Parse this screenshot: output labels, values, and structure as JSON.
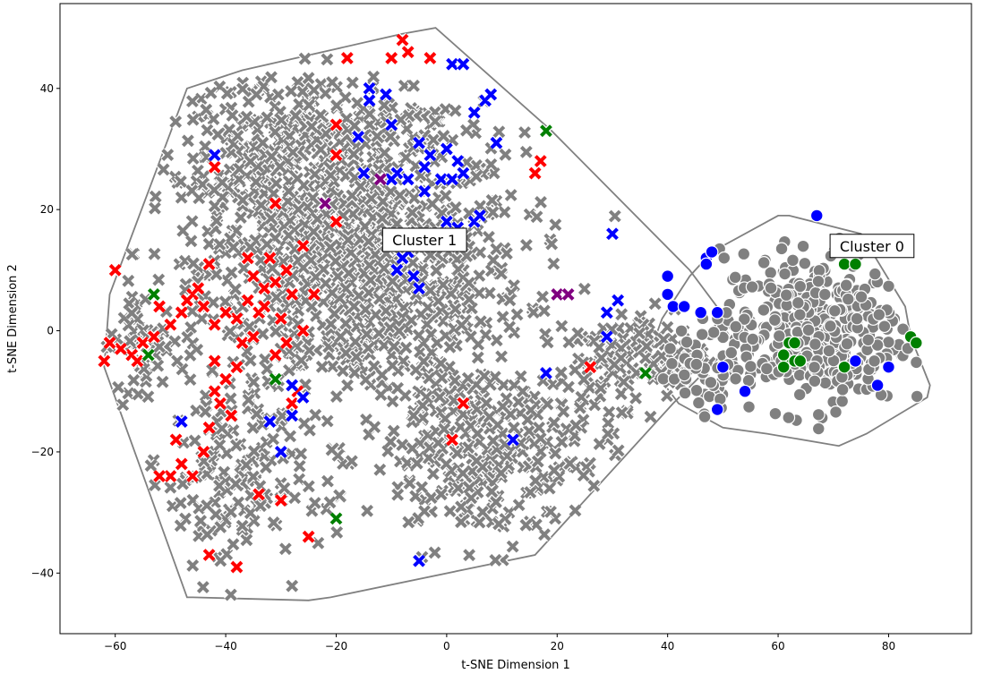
{
  "chart_data": {
    "type": "scatter",
    "title": "",
    "xlabel": "t-SNE Dimension 1",
    "ylabel": "t-SNE Dimension 2",
    "xlim": [
      -70,
      95
    ],
    "ylim": [
      -50,
      54
    ],
    "xticks": [
      -60,
      -40,
      -20,
      0,
      20,
      40,
      60,
      80
    ],
    "yticks": [
      -40,
      -20,
      0,
      20,
      40
    ],
    "xtick_labels": [
      "−60",
      "−40",
      "−20",
      "0",
      "20",
      "40",
      "60",
      "80"
    ],
    "ytick_labels": [
      "−40",
      "−20",
      "0",
      "20",
      "40"
    ],
    "grid": false,
    "legend": "none",
    "colors": {
      "gray": "#808080",
      "red": "#ff0000",
      "blue": "#0000ff",
      "green": "#008000",
      "purple": "#800080",
      "hull": "#808080"
    },
    "clusters": [
      {
        "label": "Cluster 1",
        "marker": "x",
        "label_pos": [
          -4,
          15
        ],
        "hull": [
          [
            -62,
            -6
          ],
          [
            -61,
            6
          ],
          [
            -47,
            40
          ],
          [
            -37,
            43
          ],
          [
            -8,
            49
          ],
          [
            -2,
            50
          ],
          [
            19,
            33
          ],
          [
            44,
            10
          ],
          [
            53,
            -1
          ],
          [
            41,
            -12
          ],
          [
            16,
            -37
          ],
          [
            -21,
            -44
          ],
          [
            -25,
            -44.5
          ],
          [
            -46,
            -44
          ],
          [
            -47,
            -44
          ]
        ],
        "gray_blobs": [
          {
            "center": [
              -15,
              10
            ],
            "spread": [
              18,
              14
            ],
            "count": 900
          },
          {
            "center": [
              -35,
              25
            ],
            "spread": [
              10,
              12
            ],
            "count": 220
          },
          {
            "center": [
              8,
              -20
            ],
            "spread": [
              14,
              10
            ],
            "count": 320
          },
          {
            "center": [
              -40,
              -25
            ],
            "spread": [
              9,
              10
            ],
            "count": 150
          },
          {
            "center": [
              35,
              -4
            ],
            "spread": [
              8,
              5
            ],
            "count": 130
          },
          {
            "center": [
              -55,
              -3
            ],
            "spread": [
              5,
              6
            ],
            "count": 60
          },
          {
            "center": [
              -20,
              33
            ],
            "spread": [
              14,
              6
            ],
            "count": 180
          }
        ],
        "highlight_points": [
          {
            "color": "red",
            "points": [
              [
                -35,
                9
              ],
              [
                -33,
                7
              ],
              [
                -31,
                8
              ],
              [
                -29,
                10
              ],
              [
                -36,
                5
              ],
              [
                -34,
                3
              ],
              [
                -30,
                2
              ],
              [
                -38,
                2
              ],
              [
                -40,
                3
              ],
              [
                -42,
                1
              ],
              [
                -44,
                4
              ],
              [
                -46,
                6
              ],
              [
                -48,
                3
              ],
              [
                -50,
                1
              ],
              [
                -52,
                4
              ],
              [
                -55,
                -2
              ],
              [
                -57,
                -4
              ],
              [
                -59,
                -3
              ],
              [
                -61,
                -2
              ],
              [
                -62,
                -5
              ],
              [
                -60,
                10
              ],
              [
                -53,
                -1
              ],
              [
                -56,
                -5
              ],
              [
                -40,
                -8
              ],
              [
                -42,
                -10
              ],
              [
                -38,
                -6
              ],
              [
                -41,
                -12
              ],
              [
                -39,
                -14
              ],
              [
                -43,
                -16
              ],
              [
                -44,
                -20
              ],
              [
                -46,
                -24
              ],
              [
                -48,
                -22
              ],
              [
                -50,
                -24
              ],
              [
                -52,
                -24
              ],
              [
                -49,
                -18
              ],
              [
                -43,
                -37
              ],
              [
                -38,
                -39
              ],
              [
                -34,
                -27
              ],
              [
                -30,
                -28
              ],
              [
                -25,
                -34
              ],
              [
                -28,
                -12
              ],
              [
                -27,
                -10
              ],
              [
                -26,
                14
              ],
              [
                -28,
                6
              ],
              [
                -32,
                12
              ],
              [
                -33,
                4
              ],
              [
                -37,
                -2
              ],
              [
                -45,
                7
              ],
              [
                -47,
                5
              ],
              [
                -29,
                -2
              ],
              [
                -31,
                -4
              ],
              [
                -35,
                -1
              ],
              [
                -42,
                -5
              ],
              [
                -20,
                34
              ],
              [
                -18,
                45
              ],
              [
                -10,
                45
              ],
              [
                -7,
                46
              ],
              [
                -3,
                45
              ],
              [
                -8,
                48
              ],
              [
                -20,
                29
              ],
              [
                -20,
                18
              ],
              [
                -43,
                11
              ],
              [
                -42,
                27
              ],
              [
                16,
                26
              ],
              [
                17,
                28
              ],
              [
                26,
                -6
              ],
              [
                3,
                -12
              ],
              [
                1,
                -18
              ],
              [
                -31,
                21
              ],
              [
                -36,
                12
              ],
              [
                -26,
                0
              ],
              [
                -24,
                6
              ]
            ]
          },
          {
            "color": "blue",
            "points": [
              [
                -5,
                31
              ],
              [
                -3,
                29
              ],
              [
                0,
                30
              ],
              [
                2,
                28
              ],
              [
                -4,
                27
              ],
              [
                -7,
                25
              ],
              [
                -9,
                26
              ],
              [
                -10,
                25
              ],
              [
                -15,
                26
              ],
              [
                -16,
                32
              ],
              [
                -14,
                40
              ],
              [
                -11,
                39
              ],
              [
                -14,
                38
              ],
              [
                -10,
                34
              ],
              [
                -4,
                23
              ],
              [
                -1,
                25
              ],
              [
                1,
                25
              ],
              [
                3,
                26
              ],
              [
                5,
                36
              ],
              [
                7,
                38
              ],
              [
                8,
                39
              ],
              [
                9,
                31
              ],
              [
                1,
                44
              ],
              [
                3,
                44
              ],
              [
                0,
                18
              ],
              [
                2,
                17
              ],
              [
                5,
                18
              ],
              [
                6,
                19
              ],
              [
                -7,
                13
              ],
              [
                -8,
                12
              ],
              [
                -6,
                9
              ],
              [
                -5,
                7
              ],
              [
                -9,
                10
              ],
              [
                -28,
                -9
              ],
              [
                -26,
                -11
              ],
              [
                -30,
                -20
              ],
              [
                -48,
                -15
              ],
              [
                -42,
                29
              ],
              [
                12,
                -18
              ],
              [
                30,
                16
              ],
              [
                31,
                5
              ],
              [
                29,
                3
              ],
              [
                -32,
                -15
              ],
              [
                -28,
                -14
              ],
              [
                -5,
                -38
              ],
              [
                18,
                -7
              ],
              [
                29,
                -1
              ]
            ]
          },
          {
            "color": "green",
            "points": [
              [
                -53,
                6
              ],
              [
                -54,
                -4
              ],
              [
                18,
                33
              ],
              [
                -20,
                -31
              ],
              [
                36,
                -7
              ],
              [
                -31,
                -8
              ]
            ]
          },
          {
            "color": "purple",
            "points": [
              [
                -12,
                25
              ],
              [
                20,
                6
              ],
              [
                22,
                6
              ],
              [
                -22,
                21
              ]
            ]
          }
        ]
      },
      {
        "label": "Cluster 0",
        "marker": "o",
        "label_pos": [
          77,
          14
        ],
        "hull": [
          [
            37,
            -6
          ],
          [
            42,
            -12
          ],
          [
            50,
            -16
          ],
          [
            58,
            -17
          ],
          [
            71,
            -19
          ],
          [
            76,
            -17
          ],
          [
            87,
            -11
          ],
          [
            87.5,
            -9
          ],
          [
            84,
            -1
          ],
          [
            83,
            4
          ],
          [
            75,
            16
          ],
          [
            62,
            19
          ],
          [
            60,
            19
          ],
          [
            48,
            13
          ],
          [
            44,
            9
          ],
          [
            39,
            2
          ],
          [
            37,
            -3
          ]
        ],
        "gray_blobs": [
          {
            "center": [
              66,
              0
            ],
            "spread": [
              10,
              8
            ],
            "count": 380
          },
          {
            "center": [
              48,
              -6
            ],
            "spread": [
              5,
              5
            ],
            "count": 60
          }
        ],
        "highlight_points": [
          {
            "color": "blue",
            "points": [
              [
                40,
                9
              ],
              [
                40,
                6
              ],
              [
                41,
                4
              ],
              [
                43,
                4
              ],
              [
                47,
                12
              ],
              [
                47,
                11
              ],
              [
                48,
                13
              ],
              [
                49,
                3
              ],
              [
                46,
                3
              ],
              [
                50,
                -6
              ],
              [
                54,
                -10
              ],
              [
                67,
                19
              ],
              [
                74,
                -5
              ],
              [
                78,
                -9
              ],
              [
                80,
                -6
              ],
              [
                49,
                -13
              ]
            ]
          },
          {
            "color": "green",
            "points": [
              [
                72,
                11
              ],
              [
                74,
                11
              ],
              [
                62,
                -2
              ],
              [
                63,
                -2
              ],
              [
                62,
                -5
              ],
              [
                63,
                -5
              ],
              [
                61,
                -4
              ],
              [
                64,
                -5
              ],
              [
                61,
                -6
              ],
              [
                72,
                -6
              ],
              [
                84,
                -1
              ],
              [
                85,
                -2
              ]
            ]
          }
        ]
      }
    ]
  }
}
